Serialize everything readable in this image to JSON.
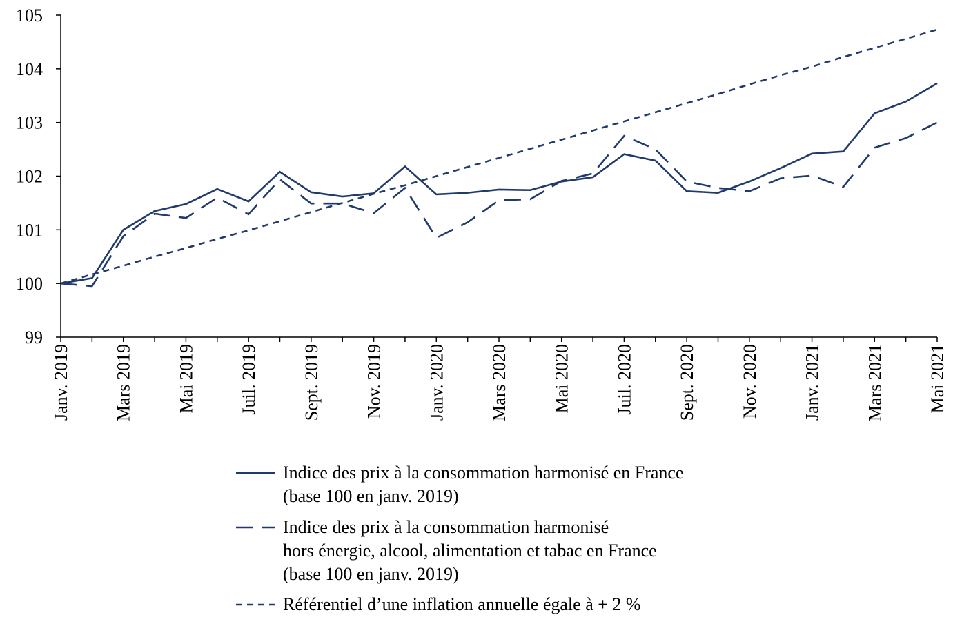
{
  "chart_data": {
    "type": "line",
    "categories": [
      "Janv. 2019",
      null,
      "Mars 2019",
      null,
      "Mai 2019",
      null,
      "Juil. 2019",
      null,
      "Sept. 2019",
      null,
      "Nov. 2019",
      null,
      "Janv. 2020",
      null,
      "Mars 2020",
      null,
      "Mai 2020",
      null,
      "Juil. 2020",
      null,
      "Sept. 2020",
      null,
      "Nov. 2020",
      null,
      "Janv. 2021",
      null,
      "Mars 2021",
      null,
      "Mai 2021"
    ],
    "series": [
      {
        "name": [
          "Indice des prix à la consommation harmonisé en France",
          "(base 100 en janv. 2019)"
        ],
        "color": "#203a6b",
        "dash": "solid",
        "values": [
          100,
          100.1,
          101.0,
          101.35,
          101.48,
          101.76,
          101.53,
          102.08,
          101.7,
          101.62,
          101.68,
          102.18,
          101.66,
          101.69,
          101.75,
          101.74,
          101.9,
          101.98,
          102.41,
          102.29,
          101.72,
          101.69,
          101.9,
          102.15,
          102.42,
          102.46,
          103.17,
          103.39,
          103.73
        ]
      },
      {
        "name": [
          "Indice des prix à la consommation harmonisé",
          "hors énergie, alcool, alimentation et tabac en France",
          "(base 100 en janv. 2019)"
        ],
        "color": "#203a6b",
        "dash": "long",
        "values": [
          100,
          99.95,
          100.88,
          101.3,
          101.22,
          101.6,
          101.29,
          101.94,
          101.49,
          101.49,
          101.31,
          101.78,
          100.85,
          101.14,
          101.55,
          101.57,
          101.91,
          102.05,
          102.75,
          102.5,
          101.9,
          101.78,
          101.72,
          101.96,
          102.01,
          101.8,
          102.53,
          102.71,
          103.0
        ]
      },
      {
        "name": [
          "Référentiel d’une inflation annuelle égale à + 2 %"
        ],
        "color": "#203a6b",
        "dash": "short",
        "values": [
          100,
          100.17,
          100.33,
          100.5,
          100.66,
          100.83,
          100.99,
          101.16,
          101.33,
          101.5,
          101.67,
          101.83,
          102.0,
          102.17,
          102.34,
          102.51,
          102.68,
          102.85,
          103.02,
          103.19,
          103.36,
          103.53,
          103.71,
          103.88,
          104.04,
          104.22,
          104.39,
          104.56,
          104.73
        ]
      }
    ],
    "ylim": [
      99,
      105
    ],
    "yticks": [
      99,
      100,
      101,
      102,
      103,
      104,
      105
    ],
    "grid": false,
    "legend": "bottom"
  }
}
